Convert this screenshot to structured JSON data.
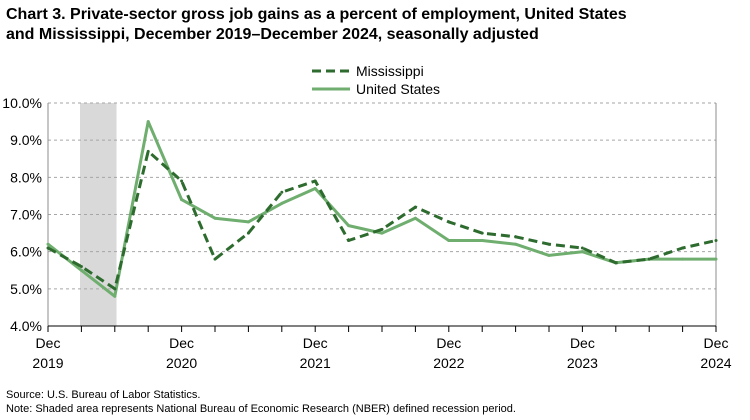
{
  "title": {
    "line1": "Chart 3. Private-sector gross job gains as a percent of employment, United States",
    "line2": "and Mississippi,  December 2019–December 2024, seasonally adjusted"
  },
  "footnotes": {
    "source": "Source: U.S. Bureau of Labor Statistics.",
    "note": "Note: Shaded area represents National Bureau of Economic Research (NBER) defined  recession period."
  },
  "chart_data": {
    "type": "line",
    "x": [
      "Dec 2019",
      "Mar 2020",
      "Jun 2020",
      "Sep 2020",
      "Dec 2020",
      "Mar 2021",
      "Jun 2021",
      "Sep 2021",
      "Dec 2021",
      "Mar 2022",
      "Jun 2022",
      "Sep 2022",
      "Dec 2022",
      "Mar 2023",
      "Jun 2023",
      "Sep 2023",
      "Dec 2023",
      "Mar 2024",
      "Jun 2024",
      "Sep 2024",
      "Dec 2024"
    ],
    "series": [
      {
        "name": "Mississippi",
        "style": "dashed",
        "color": "#2e6b2e",
        "values": [
          6.1,
          5.6,
          5.0,
          8.7,
          7.9,
          5.8,
          6.5,
          7.6,
          7.9,
          6.3,
          6.6,
          7.2,
          6.8,
          6.5,
          6.4,
          6.2,
          6.1,
          5.7,
          5.8,
          6.1,
          6.3
        ]
      },
      {
        "name": "United States",
        "style": "solid",
        "color": "#6fae6f",
        "values": [
          6.2,
          5.5,
          4.8,
          9.5,
          7.4,
          6.9,
          6.8,
          7.3,
          7.7,
          6.7,
          6.5,
          6.9,
          6.3,
          6.3,
          6.2,
          5.9,
          6.0,
          5.7,
          5.8,
          5.8,
          5.8
        ]
      }
    ],
    "recession": {
      "start": "Dec 2019",
      "end": "Apr 2020",
      "color": "#d9d9d9"
    },
    "yticks": [
      "4.0%",
      "5.0%",
      "6.0%",
      "7.0%",
      "8.0%",
      "9.0%",
      "10.0%"
    ],
    "ylim": [
      4.0,
      10.0
    ],
    "xtick_labels": [
      {
        "month": "Dec",
        "year": "2019"
      },
      {
        "month": "Dec",
        "year": "2020"
      },
      {
        "month": "Dec",
        "year": "2021"
      },
      {
        "month": "Dec",
        "year": "2022"
      },
      {
        "month": "Dec",
        "year": "2023"
      },
      {
        "month": "Dec",
        "year": "2024"
      }
    ],
    "grid": true,
    "legend": "top-center"
  }
}
